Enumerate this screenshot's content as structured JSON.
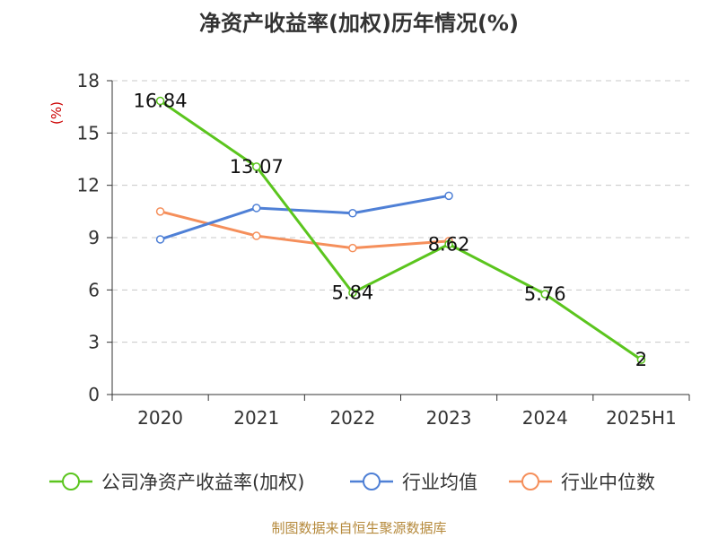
{
  "title": "净资产收益率(加权)历年情况(%)",
  "source": "制图数据来自恒生聚源数据库",
  "chart_data": {
    "type": "line",
    "title": "净资产收益率(加权)历年情况(%)",
    "ylabel": "(%)",
    "xlabel": "",
    "categories": [
      "2020",
      "2021",
      "2022",
      "2023",
      "2024",
      "2025H1"
    ],
    "ylim": [
      0,
      18
    ],
    "yticks": [
      0,
      3,
      6,
      9,
      12,
      15,
      18
    ],
    "grid": true,
    "legend_position": "bottom",
    "series": [
      {
        "name": "公司净资产收益率(加权)",
        "color": "#5bc51e",
        "values": [
          16.84,
          13.07,
          5.84,
          8.62,
          5.76,
          2
        ],
        "labels": [
          "16.84",
          "13.07",
          "5.84",
          "8.62",
          "5.76",
          "2"
        ]
      },
      {
        "name": "行业均值",
        "color": "#4f80d6",
        "values": [
          8.9,
          10.7,
          10.4,
          11.4,
          null,
          null
        ]
      },
      {
        "name": "行业中位数",
        "color": "#f58f5b",
        "values": [
          10.5,
          9.1,
          8.4,
          8.8,
          null,
          null
        ]
      }
    ]
  }
}
